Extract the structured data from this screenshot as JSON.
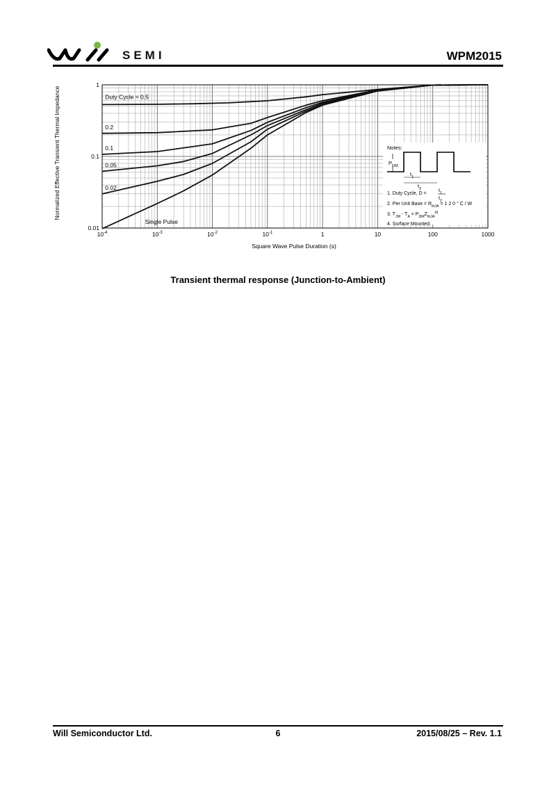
{
  "header": {
    "brand": "SEMI",
    "doc_title": "WPM2015",
    "accent_color": "#7ab648"
  },
  "chart_data": {
    "type": "line",
    "title": "",
    "xlabel": "Square Wave Pulse Duration (s)",
    "ylabel": "Normalized Effective Transient Thermal Impedance",
    "x_scale": "log",
    "y_scale": "log",
    "xlim": [
      0.0001,
      1000
    ],
    "ylim": [
      0.01,
      1
    ],
    "grid": true,
    "x_tick_labels": [
      {
        "base": "10",
        "exp": "-4"
      },
      {
        "base": "10",
        "exp": "-3"
      },
      {
        "base": "10",
        "exp": "-2"
      },
      {
        "base": "10",
        "exp": "-1"
      },
      {
        "base": "1",
        "exp": ""
      },
      {
        "base": "10",
        "exp": ""
      },
      {
        "base": "100",
        "exp": ""
      },
      {
        "base": "1000",
        "exp": ""
      }
    ],
    "y_tick_labels": [
      "0.01",
      "0.1",
      "1"
    ],
    "series": [
      {
        "name": "Duty Cycle = 0.5",
        "x": [
          0.0001,
          0.001,
          0.005,
          0.02,
          0.1,
          0.5,
          1,
          10,
          100,
          1000
        ],
        "y": [
          0.53,
          0.535,
          0.545,
          0.56,
          0.6,
          0.68,
          0.73,
          0.86,
          0.99,
          1.0
        ]
      },
      {
        "name": "0.2",
        "x": [
          0.0001,
          0.001,
          0.01,
          0.05,
          0.1,
          0.5,
          1,
          10,
          100,
          1000
        ],
        "y": [
          0.21,
          0.215,
          0.235,
          0.29,
          0.35,
          0.52,
          0.6,
          0.85,
          0.99,
          1.0
        ]
      },
      {
        "name": "0.1",
        "x": [
          0.0001,
          0.001,
          0.01,
          0.05,
          0.1,
          0.5,
          1,
          10,
          100,
          1000
        ],
        "y": [
          0.107,
          0.117,
          0.15,
          0.23,
          0.3,
          0.48,
          0.57,
          0.84,
          0.99,
          1.0
        ]
      },
      {
        "name": "0.05",
        "x": [
          0.0001,
          0.001,
          0.003,
          0.01,
          0.05,
          0.1,
          0.5,
          1,
          10,
          100,
          1000
        ],
        "y": [
          0.062,
          0.074,
          0.085,
          0.11,
          0.2,
          0.27,
          0.45,
          0.55,
          0.83,
          0.99,
          1.0
        ]
      },
      {
        "name": "0.02",
        "x": [
          0.0001,
          0.001,
          0.003,
          0.01,
          0.05,
          0.1,
          0.5,
          1,
          10,
          100,
          1000
        ],
        "y": [
          0.03,
          0.045,
          0.056,
          0.08,
          0.16,
          0.24,
          0.43,
          0.53,
          0.82,
          0.99,
          1.0
        ]
      },
      {
        "name": "Single Pulse",
        "x": [
          0.0001,
          0.001,
          0.003,
          0.01,
          0.05,
          0.1,
          0.5,
          1,
          10,
          100,
          1000
        ],
        "y": [
          0.0098,
          0.022,
          0.033,
          0.055,
          0.13,
          0.2,
          0.41,
          0.52,
          0.82,
          0.99,
          1.0
        ]
      }
    ],
    "notes": {
      "title": "Notes:",
      "pdm_label": "P",
      "pdm_sub": "DM",
      "t1_label": "t",
      "t1_sub": "1",
      "t2_label": "t",
      "t2_sub": "2",
      "note1_prefix": "1. Duty Cycle, D =",
      "note2_prefix": "2. Per Unit Base = R",
      "note2_sub": "thJA",
      "note2_suffix": "= 1 2 0 ° C / W",
      "note3_a": "3. T",
      "note3_sub1": "JM",
      "note3_b": " - T",
      "note3_sub2": "A",
      "note3_c": " = P",
      "note3_sub3": "DM",
      "note3_d": "Z",
      "note3_sub4": "thJA",
      "note3_sup": "(t)",
      "note4": "4. Surface Mounted"
    }
  },
  "caption": "Transient thermal response (Junction-to-Ambient)",
  "footer": {
    "company": "Will Semiconductor Ltd.",
    "page": "6",
    "date_rev": "2015/08/25 – Rev. 1.1"
  }
}
